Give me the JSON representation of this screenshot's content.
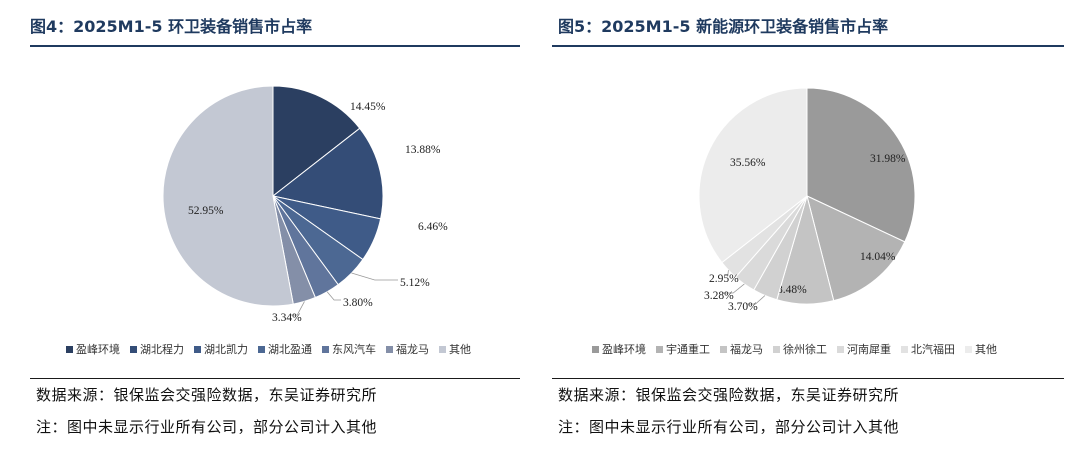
{
  "chart_data": [
    {
      "type": "pie",
      "title": "图4：2025M1-5 环卫装备销售市占率",
      "categories": [
        "盈峰环境",
        "湖北程力",
        "湖北凯力",
        "湖北盈通",
        "东风汽车",
        "福龙马",
        "其他"
      ],
      "values": [
        14.45,
        13.88,
        6.46,
        5.12,
        3.8,
        3.34,
        52.95
      ],
      "labels": [
        "14.45%",
        "13.88%",
        "6.46%",
        "5.12%",
        "3.80%",
        "3.34%",
        "52.95%"
      ],
      "colors": [
        "#2b3f61",
        "#344d77",
        "#3f5b88",
        "#4c6893",
        "#60759c",
        "#848fa8",
        "#c3c8d3"
      ],
      "legend_position": "bottom"
    },
    {
      "type": "pie",
      "title": "图5：2025M1-5 新能源环卫装备销售市占率",
      "categories": [
        "盈峰环境",
        "宇通重工",
        "福龙马",
        "徐州徐工",
        "河南犀重",
        "北汽福田",
        "其他"
      ],
      "values": [
        31.98,
        14.04,
        8.48,
        3.7,
        3.28,
        2.95,
        35.56
      ],
      "labels": [
        "31.98%",
        "14.04%",
        "8.48%",
        "3.70%",
        "3.28%",
        "2.95%",
        "35.56%"
      ],
      "colors": [
        "#9a9a9a",
        "#b3b3b3",
        "#c4c4c4",
        "#d1d1d1",
        "#dadada",
        "#e2e2e2",
        "#ececec"
      ],
      "legend_position": "bottom"
    }
  ],
  "notes": {
    "left_source": "数据来源：银保监会交强险数据，东吴证券研究所",
    "left_note": "注：图中未显示行业所有公司，部分公司计入其他",
    "right_source": "数据来源：银保监会交强险数据，东吴证券研究所",
    "right_note": "注：图中未显示行业所有公司，部分公司计入其他"
  }
}
